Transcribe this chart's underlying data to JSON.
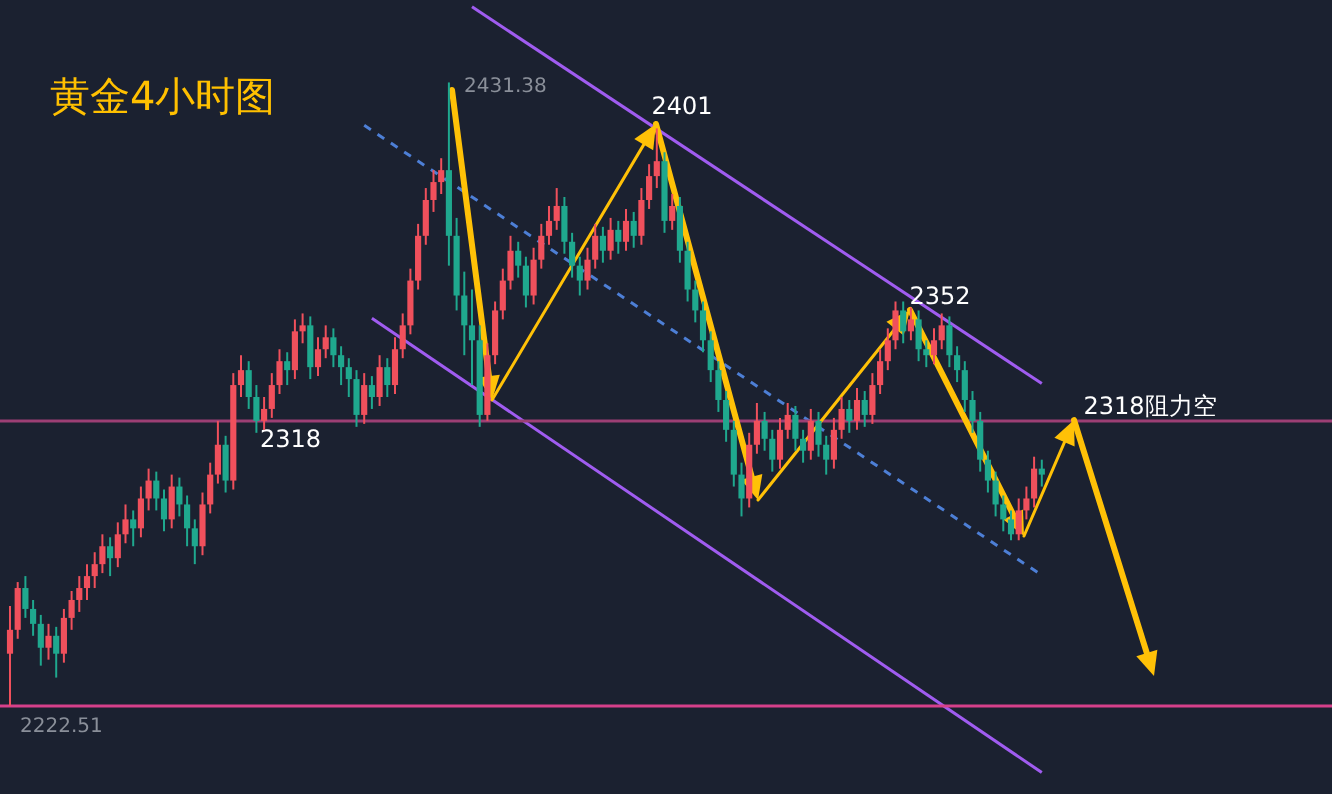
{
  "chart_data": {
    "type": "candlestick",
    "title": "黄金4小时图",
    "categories": [
      null,
      null,
      null,
      null,
      null,
      null,
      null,
      null,
      null,
      null,
      null,
      null,
      null,
      null,
      null,
      null,
      null,
      null,
      null,
      null,
      null,
      null,
      null,
      null,
      null,
      null,
      null,
      null,
      null,
      null,
      null,
      null,
      null,
      null,
      null,
      null,
      null,
      null,
      null,
      null,
      null,
      null,
      null,
      null,
      null,
      null,
      null,
      null,
      null,
      null,
      null,
      null,
      null,
      null,
      null,
      null,
      null,
      null,
      null,
      null,
      null,
      null,
      null,
      null,
      null,
      null,
      null,
      null,
      null,
      null,
      null,
      null,
      null,
      null,
      null,
      null,
      null,
      null,
      null,
      null,
      null,
      null,
      null,
      null,
      null,
      null,
      null,
      null,
      null,
      null,
      null,
      null,
      null,
      null,
      null,
      null,
      null,
      null,
      null,
      null,
      null,
      null,
      null,
      null,
      null,
      null,
      null,
      null,
      null,
      null,
      null,
      null,
      null,
      null,
      null,
      null,
      null,
      null,
      null,
      null,
      null,
      null,
      null,
      null,
      null,
      null,
      null,
      null,
      null,
      null,
      null,
      null,
      null,
      null,
      null
    ],
    "ohlc": [
      [
        2240,
        2256,
        2222.51,
        2248
      ],
      [
        2248,
        2264,
        2245,
        2262
      ],
      [
        2262,
        2266,
        2252,
        2255
      ],
      [
        2255,
        2258,
        2246,
        2250
      ],
      [
        2250,
        2253,
        2236,
        2242
      ],
      [
        2242,
        2250,
        2238,
        2246
      ],
      [
        2246,
        2249,
        2232,
        2240
      ],
      [
        2240,
        2255,
        2237,
        2252
      ],
      [
        2252,
        2261,
        2248,
        2258
      ],
      [
        2258,
        2266,
        2254,
        2262
      ],
      [
        2262,
        2270,
        2258,
        2266
      ],
      [
        2266,
        2274,
        2262,
        2270
      ],
      [
        2270,
        2280,
        2267,
        2276
      ],
      [
        2276,
        2279,
        2266,
        2272
      ],
      [
        2272,
        2284,
        2269,
        2280
      ],
      [
        2280,
        2290,
        2277,
        2285
      ],
      [
        2285,
        2288,
        2276,
        2282
      ],
      [
        2282,
        2296,
        2279,
        2292
      ],
      [
        2292,
        2302,
        2288,
        2298
      ],
      [
        2298,
        2301,
        2288,
        2292
      ],
      [
        2292,
        2295,
        2281,
        2285
      ],
      [
        2285,
        2300,
        2282,
        2296
      ],
      [
        2296,
        2299,
        2286,
        2290
      ],
      [
        2290,
        2293,
        2276,
        2282
      ],
      [
        2282,
        2285,
        2270,
        2276
      ],
      [
        2276,
        2294,
        2273,
        2290
      ],
      [
        2290,
        2304,
        2287,
        2300
      ],
      [
        2300,
        2318,
        2297,
        2310
      ],
      [
        2310,
        2313,
        2294,
        2298
      ],
      [
        2298,
        2334,
        2295,
        2330
      ],
      [
        2330,
        2340,
        2326,
        2335
      ],
      [
        2335,
        2338,
        2322,
        2326
      ],
      [
        2326,
        2330,
        2314,
        2318
      ],
      [
        2318,
        2326,
        2315,
        2322
      ],
      [
        2322,
        2334,
        2319,
        2330
      ],
      [
        2330,
        2342,
        2327,
        2338
      ],
      [
        2338,
        2341,
        2330,
        2335
      ],
      [
        2335,
        2352,
        2332,
        2348
      ],
      [
        2348,
        2354,
        2344,
        2350
      ],
      [
        2350,
        2353,
        2332,
        2336
      ],
      [
        2336,
        2346,
        2333,
        2342
      ],
      [
        2342,
        2350,
        2339,
        2346
      ],
      [
        2346,
        2349,
        2336,
        2340
      ],
      [
        2340,
        2343,
        2330,
        2336
      ],
      [
        2336,
        2339,
        2326,
        2332
      ],
      [
        2332,
        2335,
        2316,
        2320
      ],
      [
        2320,
        2334,
        2317,
        2330
      ],
      [
        2330,
        2333,
        2322,
        2326
      ],
      [
        2326,
        2340,
        2323,
        2336
      ],
      [
        2336,
        2339,
        2326,
        2330
      ],
      [
        2330,
        2346,
        2327,
        2342
      ],
      [
        2342,
        2354,
        2339,
        2350
      ],
      [
        2350,
        2369,
        2347,
        2365
      ],
      [
        2365,
        2384,
        2362,
        2380
      ],
      [
        2380,
        2396,
        2377,
        2392
      ],
      [
        2392,
        2402,
        2388,
        2398
      ],
      [
        2398,
        2406,
        2394,
        2402
      ],
      [
        2402,
        2431.38,
        2370,
        2380
      ],
      [
        2380,
        2386,
        2355,
        2360
      ],
      [
        2360,
        2368,
        2340,
        2350
      ],
      [
        2350,
        2362,
        2330,
        2345
      ],
      [
        2345,
        2350,
        2316,
        2320
      ],
      [
        2320,
        2344,
        2318,
        2340
      ],
      [
        2340,
        2358,
        2337,
        2355
      ],
      [
        2355,
        2369,
        2352,
        2365
      ],
      [
        2365,
        2380,
        2362,
        2375
      ],
      [
        2375,
        2378,
        2366,
        2370
      ],
      [
        2370,
        2373,
        2356,
        2360
      ],
      [
        2360,
        2376,
        2357,
        2372
      ],
      [
        2372,
        2384,
        2369,
        2380
      ],
      [
        2380,
        2390,
        2377,
        2385
      ],
      [
        2385,
        2396,
        2382,
        2390
      ],
      [
        2390,
        2393,
        2374,
        2378
      ],
      [
        2378,
        2381,
        2366,
        2370
      ],
      [
        2370,
        2373,
        2360,
        2365
      ],
      [
        2365,
        2376,
        2362,
        2372
      ],
      [
        2372,
        2384,
        2369,
        2380
      ],
      [
        2380,
        2383,
        2371,
        2375
      ],
      [
        2375,
        2386,
        2372,
        2382
      ],
      [
        2382,
        2385,
        2374,
        2378
      ],
      [
        2378,
        2389,
        2375,
        2385
      ],
      [
        2385,
        2388,
        2376,
        2380
      ],
      [
        2380,
        2396,
        2377,
        2392
      ],
      [
        2392,
        2404,
        2389,
        2400
      ],
      [
        2400,
        2416,
        2396,
        2405
      ],
      [
        2405,
        2408,
        2381,
        2385
      ],
      [
        2385,
        2394,
        2382,
        2390
      ],
      [
        2390,
        2393,
        2371,
        2375
      ],
      [
        2375,
        2378,
        2358,
        2362
      ],
      [
        2362,
        2365,
        2351,
        2355
      ],
      [
        2355,
        2358,
        2341,
        2345
      ],
      [
        2345,
        2348,
        2331,
        2335
      ],
      [
        2335,
        2338,
        2321,
        2325
      ],
      [
        2325,
        2328,
        2311,
        2315
      ],
      [
        2315,
        2318,
        2296,
        2300
      ],
      [
        2300,
        2304,
        2286,
        2292
      ],
      [
        2292,
        2314,
        2289,
        2310
      ],
      [
        2310,
        2324,
        2307,
        2318
      ],
      [
        2318,
        2321,
        2308,
        2312
      ],
      [
        2312,
        2315,
        2301,
        2305
      ],
      [
        2305,
        2319,
        2302,
        2315
      ],
      [
        2315,
        2324,
        2312,
        2320
      ],
      [
        2320,
        2323,
        2308,
        2312
      ],
      [
        2312,
        2315,
        2304,
        2308
      ],
      [
        2308,
        2322,
        2305,
        2318
      ],
      [
        2318,
        2321,
        2306,
        2310
      ],
      [
        2310,
        2313,
        2300,
        2305
      ],
      [
        2305,
        2319,
        2302,
        2315
      ],
      [
        2315,
        2326,
        2312,
        2322
      ],
      [
        2322,
        2325,
        2314,
        2318
      ],
      [
        2318,
        2329,
        2315,
        2325
      ],
      [
        2325,
        2328,
        2316,
        2320
      ],
      [
        2320,
        2334,
        2317,
        2330
      ],
      [
        2330,
        2342,
        2327,
        2338
      ],
      [
        2338,
        2349,
        2335,
        2345
      ],
      [
        2345,
        2358,
        2342,
        2355
      ],
      [
        2355,
        2358,
        2344,
        2348
      ],
      [
        2348,
        2356,
        2345,
        2352
      ],
      [
        2352,
        2355,
        2338,
        2342
      ],
      [
        2342,
        2345,
        2336,
        2340
      ],
      [
        2340,
        2349,
        2337,
        2345
      ],
      [
        2345,
        2354,
        2342,
        2350
      ],
      [
        2350,
        2353,
        2336,
        2340
      ],
      [
        2340,
        2343,
        2331,
        2335
      ],
      [
        2335,
        2338,
        2321,
        2325
      ],
      [
        2325,
        2328,
        2314,
        2318
      ],
      [
        2318,
        2321,
        2301,
        2305
      ],
      [
        2305,
        2308,
        2294,
        2298
      ],
      [
        2298,
        2301,
        2286,
        2290
      ],
      [
        2290,
        2293,
        2281,
        2285
      ],
      [
        2285,
        2288,
        2278,
        2280
      ],
      [
        2280,
        2292,
        2278,
        2288
      ],
      [
        2288,
        2296,
        2285,
        2292
      ],
      [
        2292,
        2306,
        2289,
        2302
      ],
      [
        2302,
        2305,
        2296,
        2300
      ]
    ],
    "colors": [
      "#f0505c",
      "#f0505c",
      "#1fa88e",
      "#1fa88e",
      "#1fa88e",
      "#f0505c",
      "#1fa88e",
      "#f0505c",
      "#f0505c",
      "#f0505c",
      "#f0505c",
      "#f0505c",
      "#f0505c",
      "#1fa88e",
      "#f0505c",
      "#f0505c",
      "#1fa88e",
      "#f0505c",
      "#f0505c",
      "#1fa88e",
      "#1fa88e",
      "#f0505c",
      "#1fa88e",
      "#1fa88e",
      "#1fa88e",
      "#f0505c",
      "#f0505c",
      "#f0505c",
      "#1fa88e",
      "#f0505c",
      "#f0505c",
      "#1fa88e",
      "#1fa88e",
      "#f0505c",
      "#f0505c",
      "#f0505c",
      "#1fa88e",
      "#f0505c",
      "#f0505c",
      "#1fa88e",
      "#f0505c",
      "#f0505c",
      "#1fa88e",
      "#1fa88e",
      "#1fa88e",
      "#1fa88e",
      "#f0505c",
      "#1fa88e",
      "#f0505c",
      "#1fa88e",
      "#f0505c",
      "#f0505c",
      "#f0505c",
      "#f0505c",
      "#f0505c",
      "#f0505c",
      "#f0505c",
      "#1fa88e",
      "#1fa88e",
      "#1fa88e",
      "#1fa88e",
      "#1fa88e",
      "#f0505c",
      "#f0505c",
      "#f0505c",
      "#f0505c",
      "#1fa88e",
      "#1fa88e",
      "#f0505c",
      "#f0505c",
      "#f0505c",
      "#f0505c",
      "#1fa88e",
      "#1fa88e",
      "#1fa88e",
      "#f0505c",
      "#f0505c",
      "#1fa88e",
      "#f0505c",
      "#1fa88e",
      "#f0505c",
      "#1fa88e",
      "#f0505c",
      "#f0505c",
      "#f0505c",
      "#1fa88e",
      "#f0505c",
      "#1fa88e",
      "#1fa88e",
      "#1fa88e",
      "#1fa88e",
      "#1fa88e",
      "#1fa88e",
      "#1fa88e",
      "#1fa88e",
      "#1fa88e",
      "#f0505c",
      "#f0505c",
      "#1fa88e",
      "#1fa88e",
      "#f0505c",
      "#f0505c",
      "#1fa88e",
      "#1fa88e",
      "#f0505c",
      "#1fa88e",
      "#1fa88e",
      "#f0505c",
      "#f0505c",
      "#1fa88e",
      "#f0505c",
      "#1fa88e",
      "#f0505c",
      "#f0505c",
      "#f0505c",
      "#f0505c",
      "#1fa88e",
      "#f0505c",
      "#1fa88e",
      "#1fa88e",
      "#f0505c",
      "#f0505c",
      "#1fa88e",
      "#1fa88e",
      "#1fa88e",
      "#1fa88e",
      "#1fa88e",
      "#1fa88e",
      "#1fa88e",
      "#1fa88e",
      "#1fa88e",
      "#f0505c",
      "#f0505c",
      "#f0505c",
      "#1fa88e"
    ],
    "ref_lines": [
      {
        "axis": "y",
        "value": 2318,
        "label": "2318",
        "color": "#9c3f74"
      },
      {
        "axis": "y",
        "value": 2222.51,
        "label": "2222.51",
        "color": "#d6408a"
      }
    ],
    "series": [
      {
        "type": "line",
        "color": "#a05cf0",
        "values": [
          null,
          null,
          null,
          null,
          null,
          null,
          null,
          null,
          null,
          null,
          null,
          null,
          null,
          null,
          null,
          null,
          null,
          null,
          null,
          null,
          null,
          null,
          null,
          null,
          null,
          null,
          null,
          null,
          null,
          null,
          null,
          null,
          null,
          null,
          null,
          null,
          null,
          null,
          null,
          null,
          null,
          null,
          null,
          null,
          null,
          null,
          null,
          null,
          null,
          null,
          null,
          null,
          null,
          null,
          null,
          null,
          null,
          null,
          null,
          null,
          2456.7,
          null,
          null,
          null,
          null,
          null,
          null,
          null,
          null,
          null,
          null,
          null,
          null,
          null,
          null,
          null,
          null,
          null,
          null,
          null,
          null,
          null,
          null,
          null,
          null,
          null,
          null,
          null,
          null,
          null,
          null,
          null,
          null,
          null,
          null,
          null,
          null,
          null,
          null,
          null,
          null,
          null,
          null,
          null,
          null,
          null,
          null,
          null,
          null,
          null,
          null,
          null,
          null,
          null,
          null,
          null,
          null,
          null,
          null,
          null,
          null,
          null,
          null,
          null,
          null,
          null,
          null,
          null,
          null,
          null,
          null,
          null,
          null,
          null,
          2330.5
        ]
      },
      {
        "type": "line",
        "color": "#a05cf0",
        "values": [
          null,
          null,
          null,
          null,
          null,
          null,
          null,
          null,
          null,
          null,
          null,
          null,
          null,
          null,
          null,
          null,
          null,
          null,
          null,
          null,
          null,
          null,
          null,
          null,
          null,
          null,
          null,
          null,
          null,
          null,
          null,
          null,
          null,
          null,
          null,
          null,
          null,
          null,
          null,
          null,
          null,
          null,
          null,
          null,
          null,
          null,
          null,
          2352.4,
          null,
          null,
          null,
          null,
          null,
          null,
          null,
          null,
          null,
          null,
          null,
          null,
          null,
          null,
          null,
          null,
          null,
          null,
          null,
          null,
          null,
          null,
          null,
          null,
          null,
          null,
          null,
          null,
          null,
          null,
          null,
          null,
          null,
          null,
          null,
          null,
          null,
          null,
          null,
          null,
          null,
          null,
          null,
          null,
          null,
          null,
          null,
          null,
          null,
          null,
          null,
          null,
          null,
          null,
          null,
          null,
          null,
          null,
          null,
          null,
          null,
          null,
          null,
          null,
          null,
          null,
          null,
          null,
          null,
          null,
          null,
          null,
          null,
          null,
          null,
          null,
          null,
          null,
          null,
          null,
          null,
          null,
          null,
          null,
          null,
          null,
          2200.2
        ]
      },
      {
        "type": "line",
        "color": "#4d7fd6",
        "line_style": "dashed",
        "values": [
          null,
          null,
          null,
          null,
          null,
          null,
          null,
          null,
          null,
          null,
          null,
          null,
          null,
          null,
          null,
          null,
          null,
          null,
          null,
          null,
          null,
          null,
          null,
          null,
          null,
          null,
          null,
          null,
          null,
          null,
          null,
          null,
          null,
          null,
          null,
          null,
          null,
          null,
          null,
          null,
          null,
          null,
          null,
          null,
          null,
          null,
          2417.0,
          null,
          null,
          null,
          null,
          null,
          null,
          null,
          null,
          null,
          null,
          null,
          null,
          null,
          null,
          null,
          null,
          null,
          null,
          null,
          null,
          null,
          null,
          null,
          null,
          null,
          null,
          null,
          null,
          null,
          null,
          null,
          null,
          null,
          null,
          null,
          null,
          null,
          null,
          null,
          null,
          null,
          null,
          null,
          null,
          null,
          null,
          null,
          null,
          null,
          null,
          null,
          null,
          null,
          null,
          null,
          null,
          null,
          null,
          null,
          null,
          null,
          null,
          null,
          null,
          null,
          null,
          null,
          null,
          null,
          null,
          null,
          null,
          null,
          null,
          null,
          null,
          null,
          null,
          null,
          null,
          null,
          null,
          null,
          null,
          null,
          null,
          null,
          2266.3
        ]
      }
    ],
    "annotations": [
      "2431.38",
      "2401",
      "2352",
      "2318阻力空"
    ],
    "ylim": [
      2193,
      2459
    ],
    "tick_labels": false
  }
}
